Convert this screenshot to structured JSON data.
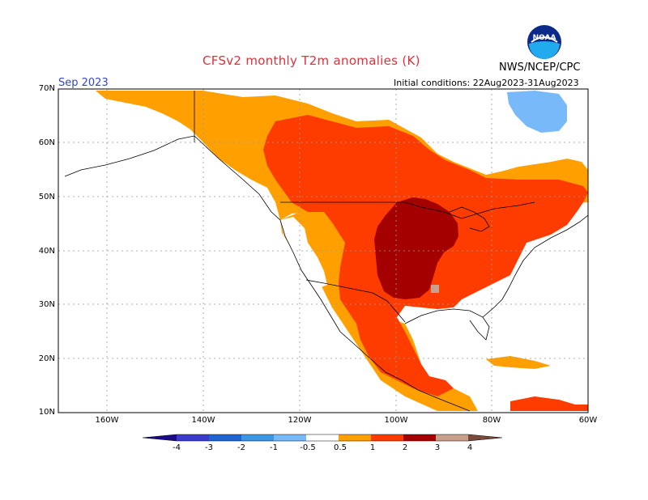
{
  "header": {
    "title": "CFSv2 monthly T2m anomalies (K)",
    "agency": "NWS/NCEP/CPC",
    "month": "Sep 2023",
    "initial_conditions": "Initial conditions: 22Aug2023-31Aug2023"
  },
  "logo": {
    "name": "noaa-logo",
    "text": "NOAA"
  },
  "axes": {
    "lat_labels": [
      "70N",
      "60N",
      "50N",
      "40N",
      "30N",
      "20N",
      "10N"
    ],
    "lon_labels": [
      "160W",
      "140W",
      "120W",
      "100W",
      "80W",
      "60W"
    ],
    "lat_range": [
      10,
      70
    ],
    "lon_range": [
      -170,
      -60
    ],
    "grid": true
  },
  "colorbar": {
    "tick_labels": [
      "-4",
      "-3",
      "-2",
      "-1",
      "-0.5",
      "0.5",
      "1",
      "2",
      "3",
      "4"
    ],
    "bins": [
      {
        "range": "< -4",
        "color": "#1a0a8c"
      },
      {
        "range": "-4 to -3",
        "color": "#3c3ccc"
      },
      {
        "range": "-3 to -2",
        "color": "#1e64d2"
      },
      {
        "range": "-2 to -1",
        "color": "#3c96e6"
      },
      {
        "range": "-1 to -0.5",
        "color": "#78b9fa"
      },
      {
        "range": "-0.5 to 0.5",
        "color": "#ffffff"
      },
      {
        "range": "0.5 to 1",
        "color": "#ffa000"
      },
      {
        "range": "1 to 2",
        "color": "#ff3c00"
      },
      {
        "range": "2 to 3",
        "color": "#a50000"
      },
      {
        "range": "3 to 4",
        "color": "#c8a08c"
      },
      {
        "range": "> 4",
        "color": "#7a4a3a"
      }
    ]
  },
  "map_regions": [
    {
      "region": "Alaska interior",
      "anomaly_class": "-0.5 to 0.5"
    },
    {
      "region": "Western Canada / Yukon",
      "anomaly_class": "0.5 to 1"
    },
    {
      "region": "Central Canada",
      "anomaly_class": "1 to 2"
    },
    {
      "region": "Northern Quebec / Labrador",
      "anomaly_class": "-0.5 to 0.5"
    },
    {
      "region": "Baffin area",
      "anomaly_class": "-1 to -0.5"
    },
    {
      "region": "US Great Plains / Upper Midwest",
      "anomaly_class": "2 to 3"
    },
    {
      "region": "Eastern US",
      "anomaly_class": "1 to 2"
    },
    {
      "region": "US West Coast",
      "anomaly_class": "-0.5 to 0.5"
    },
    {
      "region": "Mexico",
      "anomaly_class": "1 to 2"
    },
    {
      "region": "Gulf coast spot",
      "anomaly_class": "3 to 4"
    }
  ]
}
